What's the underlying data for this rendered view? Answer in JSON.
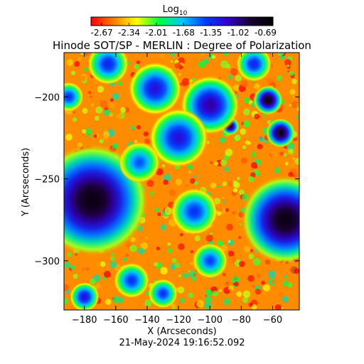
{
  "chart_data": {
    "type": "heatmap",
    "title": "Hinode SOT/SP - MERLIN : Degree of Polarization",
    "subtitle": "21-May-2024 19:16:52.092",
    "xlabel": "X (Arcseconds)",
    "ylabel": "Y (Arcseconds)",
    "xlim": [
      -193,
      -43
    ],
    "ylim": [
      -330,
      -173
    ],
    "x_ticks": [
      -180,
      -160,
      -140,
      -120,
      -100,
      -80,
      -60
    ],
    "y_ticks": [
      -200,
      -250,
      -300
    ],
    "colorbar": {
      "label_base": "Log",
      "label_subscript": "10",
      "range": [
        -2.8,
        -0.6
      ],
      "tick_values": [
        -2.67,
        -2.34,
        -2.01,
        -1.68,
        -1.35,
        -1.02,
        -0.69
      ],
      "tick_labels": [
        "-2.67",
        "-2.34",
        "-2.01",
        "-1.68",
        "-1.35",
        "-1.02",
        "-0.69"
      ],
      "colormap": [
        "#ff0000",
        "#ff7f00",
        "#ffff00",
        "#00ff40",
        "#00c8ff",
        "#0040ff",
        "#3300cc",
        "#1a0033",
        "#000000"
      ]
    },
    "features": [
      {
        "name": "large spot (left)",
        "x": -175,
        "y": -263,
        "radius": 19,
        "value": -0.69
      },
      {
        "name": "large spot (right)",
        "x": -52,
        "y": -275,
        "radius": 15,
        "value": -0.69
      },
      {
        "name": "small spot upper right",
        "x": -63,
        "y": -202,
        "radius": 5,
        "value": -0.72
      },
      {
        "name": "small spot right",
        "x": -55,
        "y": -222,
        "radius": 5,
        "value": -0.72
      },
      {
        "name": "pore center",
        "x": -87,
        "y": -218,
        "radius": 3,
        "value": -0.85
      },
      {
        "name": "network blue patch",
        "x": -100,
        "y": -205,
        "radius": 10,
        "value": -1.05
      },
      {
        "name": "network blue patch",
        "x": -135,
        "y": -195,
        "radius": 9,
        "value": -1.2
      },
      {
        "name": "network blue patch",
        "x": -120,
        "y": -225,
        "radius": 10,
        "value": -1.2
      },
      {
        "name": "network blue patch",
        "x": -165,
        "y": -180,
        "radius": 7,
        "value": -1.3
      },
      {
        "name": "network blue patch",
        "x": -110,
        "y": -270,
        "radius": 8,
        "value": -1.35
      },
      {
        "name": "network blue patch",
        "x": -72,
        "y": -180,
        "radius": 6,
        "value": -1.3
      },
      {
        "name": "network blue patch",
        "x": -150,
        "y": -312,
        "radius": 6,
        "value": -1.35
      },
      {
        "name": "network blue patch",
        "x": -180,
        "y": -322,
        "radius": 5,
        "value": -1.2
      },
      {
        "name": "network blue patch",
        "x": -130,
        "y": -320,
        "radius": 5,
        "value": -1.35
      },
      {
        "name": "network blue patch",
        "x": -100,
        "y": -300,
        "radius": 6,
        "value": -1.4
      },
      {
        "name": "network blue patch",
        "x": -190,
        "y": -200,
        "radius": 5,
        "value": -1.35
      },
      {
        "name": "network blue patch",
        "x": -145,
        "y": -240,
        "radius": 7,
        "value": -1.45
      }
    ],
    "background_value": -2.5,
    "grid": false,
    "legend": "none"
  }
}
